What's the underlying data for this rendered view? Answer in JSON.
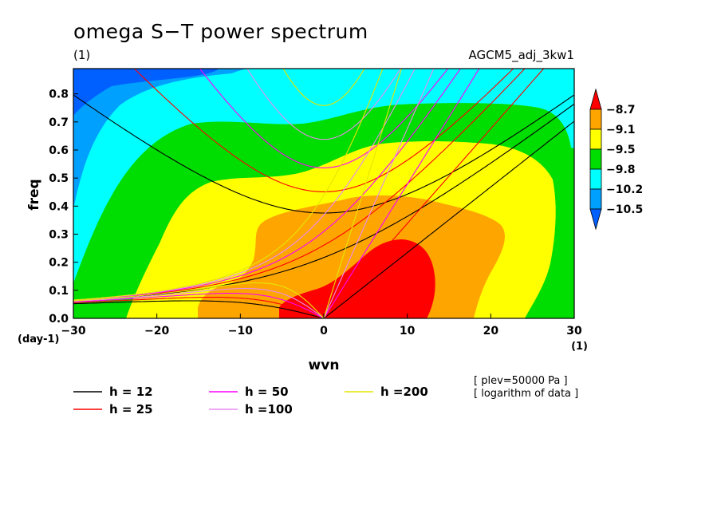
{
  "chart_data": {
    "type": "heatmap",
    "title": "omega S−T power spectrum",
    "subtitle": "(1)",
    "label_right": "AGCM5_adj_3kw1",
    "xlabel": "wvn",
    "ylabel": "freq",
    "x_unit": "(1)",
    "y_unit": "(day-1)",
    "xlim": [
      -30,
      30
    ],
    "ylim": [
      0,
      0.89
    ],
    "x_ticks": [
      "−30",
      "−20",
      "−10",
      "0",
      "10",
      "20",
      "30"
    ],
    "x_tick_values": [
      -30,
      -20,
      -10,
      0,
      10,
      20,
      30
    ],
    "y_ticks": [
      "0.0",
      "0.1",
      "0.2",
      "0.3",
      "0.4",
      "0.5",
      "0.6",
      "0.7",
      "0.8"
    ],
    "y_tick_values": [
      0,
      0.1,
      0.2,
      0.3,
      0.4,
      0.5,
      0.6,
      0.7,
      0.8
    ],
    "colorbar": {
      "labels": [
        "−8.7",
        "−9.1",
        "−9.5",
        "−9.8",
        "−10.2",
        "−10.5"
      ],
      "levels": [
        -8.7,
        -9.1,
        -9.5,
        -9.8,
        -10.2,
        -10.5
      ],
      "colors": [
        "#ff0000",
        "#ffa500",
        "#ffff00",
        "#00dd00",
        "#00ffff",
        "#00a0ff",
        "#0060ff"
      ]
    },
    "dispersion_curves": [
      {
        "name": "h = 12",
        "h": 12,
        "color": "#000000"
      },
      {
        "name": "h = 25",
        "h": 25,
        "color": "#ff0000"
      },
      {
        "name": "h = 50",
        "h": 50,
        "color": "#ff00ff"
      },
      {
        "name": "h =100",
        "h": 100,
        "color": "#e88cf0"
      },
      {
        "name": "h =200",
        "h": 200,
        "color": "#e6e600"
      }
    ],
    "notes": [
      "[ plev=50000 Pa ]",
      "[ logarithm of data ]"
    ],
    "grid": false,
    "legend_placement": "bottom-left"
  }
}
